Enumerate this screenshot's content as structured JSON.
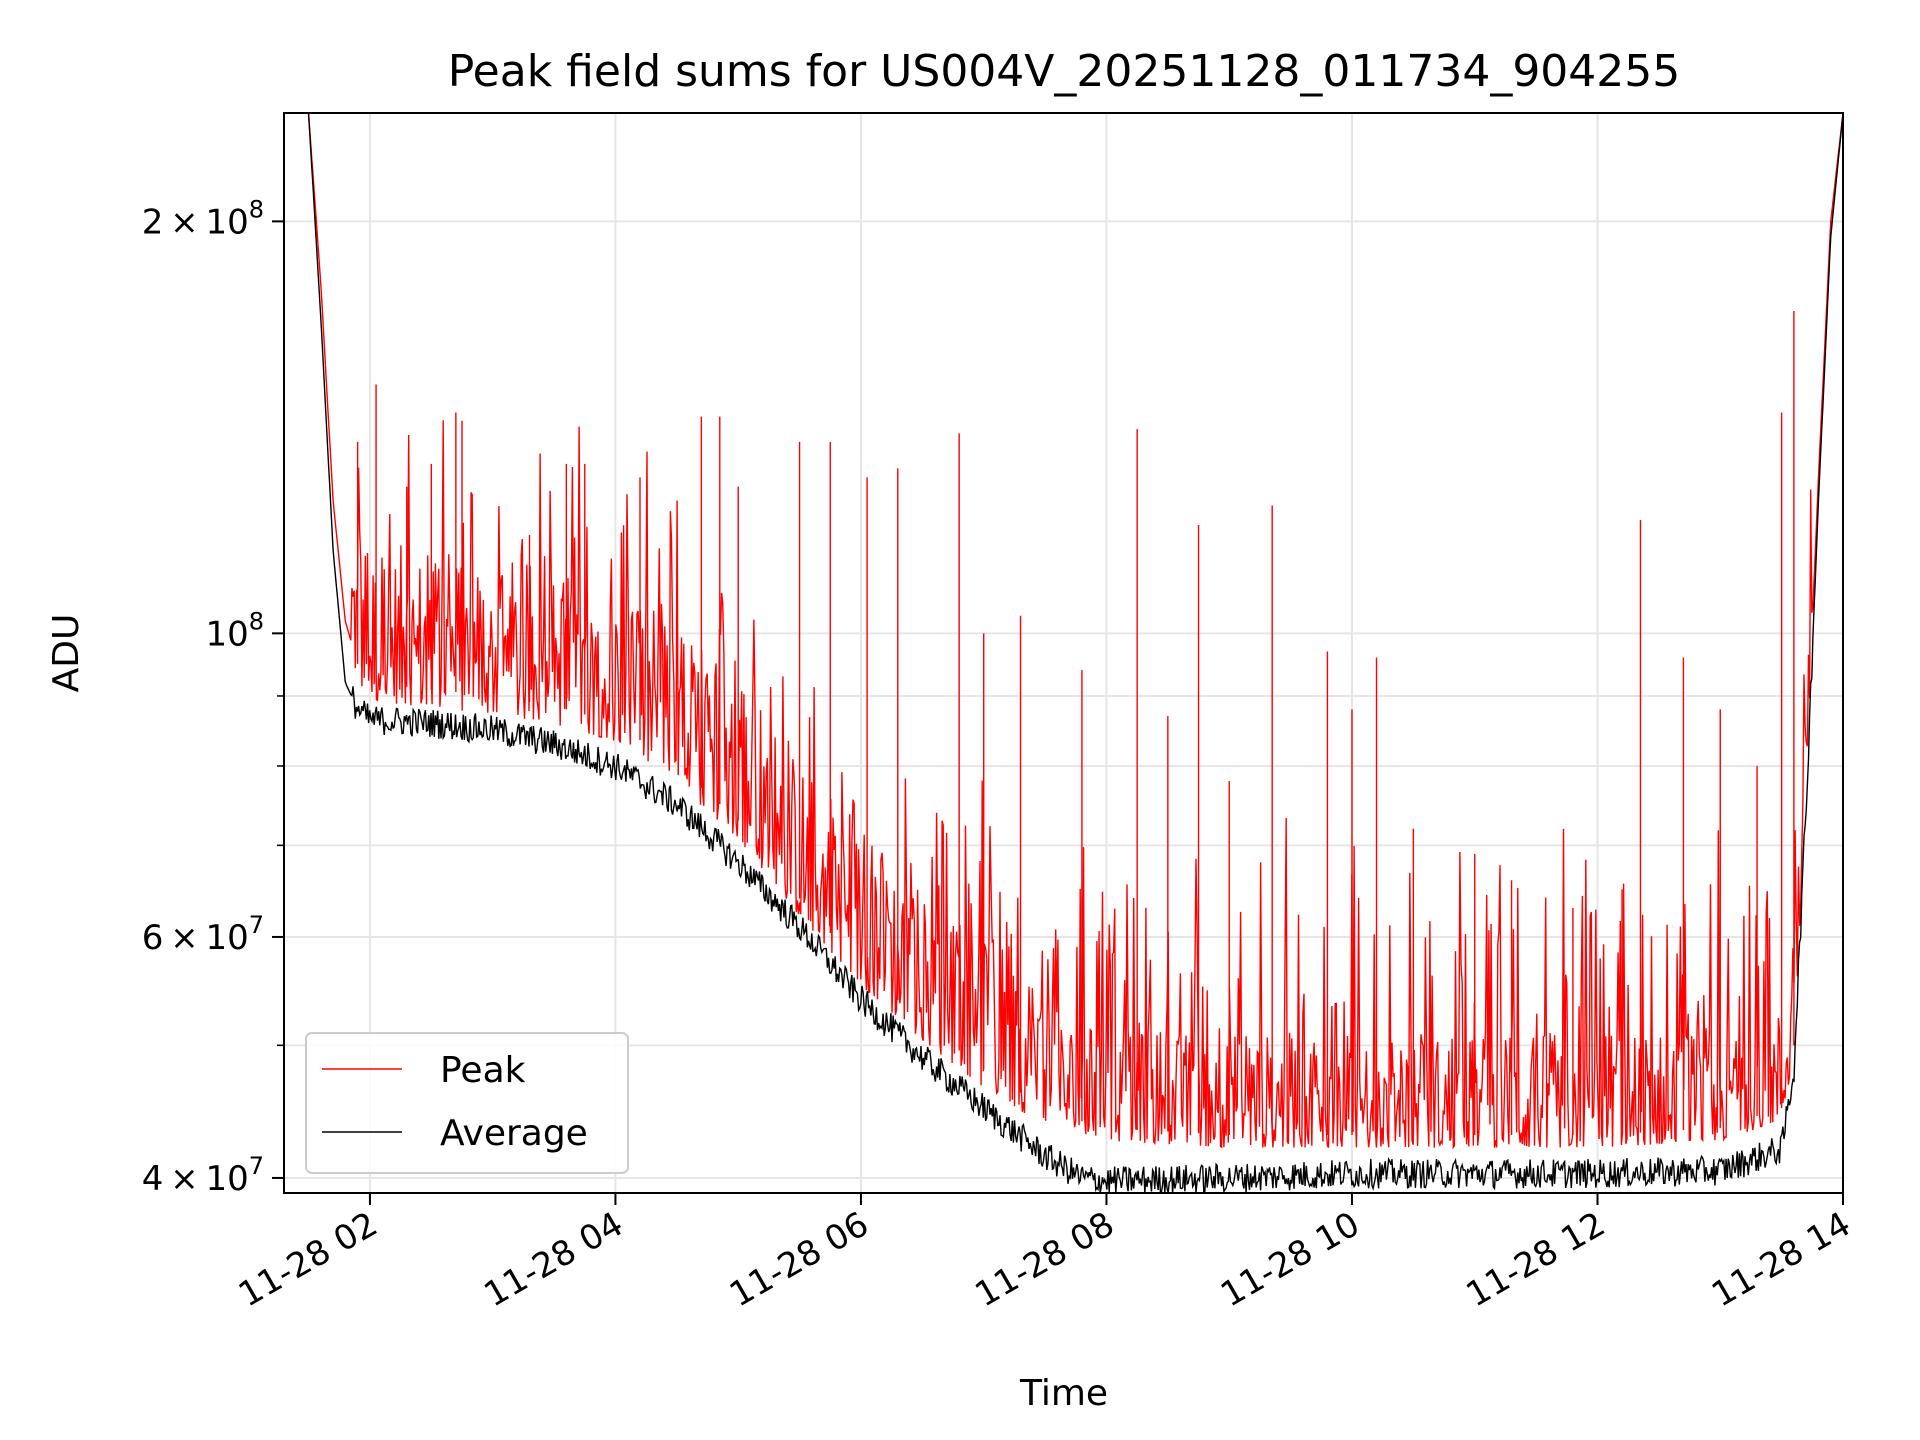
{
  "chart_data": {
    "type": "line",
    "title": "Peak field sums for US004V_20251128_011734_904255",
    "xlabel": "Time",
    "ylabel": "ADU",
    "y_scale": "log",
    "grid": true,
    "legend_position": "lower-left",
    "x_unit": "hours since 11-28 00:00",
    "xlim": [
      1.3,
      14.0
    ],
    "ylim": [
      39000000,
      240000000
    ],
    "x_ticks": [
      {
        "value": 2,
        "label": "11-28 02"
      },
      {
        "value": 4,
        "label": "11-28 04"
      },
      {
        "value": 6,
        "label": "11-28 06"
      },
      {
        "value": 8,
        "label": "11-28 08"
      },
      {
        "value": 10,
        "label": "11-28 10"
      },
      {
        "value": 12,
        "label": "11-28 12"
      },
      {
        "value": 14,
        "label": "11-28 14"
      }
    ],
    "y_major_ticks": [
      {
        "value": 40000000,
        "mantissa": "4",
        "exp": "7"
      },
      {
        "value": 60000000,
        "mantissa": "6",
        "exp": "7"
      },
      {
        "value": 100000000,
        "mantissa": "",
        "exp": "8"
      },
      {
        "value": 200000000,
        "mantissa": "2",
        "exp": "8"
      }
    ],
    "y_minor_ticks": [
      50000000,
      70000000,
      80000000,
      90000000
    ],
    "series": [
      {
        "name": "Peak",
        "color": "#ff0000",
        "baseline": {
          "x": [
            1.3,
            1.5,
            1.6,
            1.7,
            1.8,
            1.9,
            2.0,
            2.5,
            3.0,
            3.5,
            4.0,
            4.5,
            5.0,
            5.5,
            6.0,
            6.5,
            7.0,
            7.5,
            7.8,
            8.0,
            9.0,
            10.0,
            11.0,
            12.0,
            13.0,
            13.5,
            13.6,
            13.7,
            13.8,
            13.9,
            14.0
          ],
          "y": [
            240000000,
            240000000,
            180000000,
            125000000,
            102000000,
            95000000,
            92000000,
            91000000,
            90000000,
            88500000,
            86000000,
            80000000,
            73000000,
            64000000,
            57000000,
            52000000,
            48000000,
            45000000,
            44000000,
            43500000,
            43000000,
            43000000,
            43000000,
            43000000,
            43500000,
            45000000,
            50000000,
            80000000,
            130000000,
            200000000,
            240000000
          ]
        },
        "spikes": [
          {
            "x": 1.9,
            "y": 138000000
          },
          {
            "x": 2.05,
            "y": 152000000
          },
          {
            "x": 2.3,
            "y": 128000000
          },
          {
            "x": 2.5,
            "y": 133000000
          },
          {
            "x": 2.7,
            "y": 145000000
          },
          {
            "x": 2.75,
            "y": 143000000
          },
          {
            "x": 3.3,
            "y": 118000000
          },
          {
            "x": 3.6,
            "y": 133000000
          },
          {
            "x": 3.75,
            "y": 133000000
          },
          {
            "x": 4.2,
            "y": 130000000
          },
          {
            "x": 4.7,
            "y": 144000000
          },
          {
            "x": 4.85,
            "y": 144000000
          },
          {
            "x": 5.0,
            "y": 128000000
          },
          {
            "x": 5.5,
            "y": 138000000
          },
          {
            "x": 5.75,
            "y": 138000000
          },
          {
            "x": 6.05,
            "y": 130000000
          },
          {
            "x": 6.3,
            "y": 132000000
          },
          {
            "x": 6.8,
            "y": 140000000
          },
          {
            "x": 7.0,
            "y": 100000000
          },
          {
            "x": 7.3,
            "y": 103000000
          },
          {
            "x": 7.8,
            "y": 94000000
          },
          {
            "x": 8.25,
            "y": 141000000
          },
          {
            "x": 8.5,
            "y": 87000000
          },
          {
            "x": 8.75,
            "y": 120000000
          },
          {
            "x": 9.0,
            "y": 78000000
          },
          {
            "x": 9.35,
            "y": 124000000
          },
          {
            "x": 9.8,
            "y": 97000000
          },
          {
            "x": 10.0,
            "y": 88000000
          },
          {
            "x": 10.2,
            "y": 96000000
          },
          {
            "x": 10.5,
            "y": 72000000
          },
          {
            "x": 11.0,
            "y": 69000000
          },
          {
            "x": 11.3,
            "y": 66000000
          },
          {
            "x": 11.8,
            "y": 63000000
          },
          {
            "x": 12.2,
            "y": 65000000
          },
          {
            "x": 12.35,
            "y": 121000000
          },
          {
            "x": 12.7,
            "y": 96000000
          },
          {
            "x": 13.0,
            "y": 88000000
          },
          {
            "x": 13.3,
            "y": 80000000
          },
          {
            "x": 13.5,
            "y": 145000000
          },
          {
            "x": 13.6,
            "y": 172000000
          }
        ]
      },
      {
        "name": "Average",
        "color": "#000000",
        "x": [
          1.3,
          1.5,
          1.6,
          1.7,
          1.8,
          1.9,
          2.0,
          2.5,
          3.0,
          3.5,
          4.0,
          4.5,
          5.0,
          5.5,
          6.0,
          6.5,
          7.0,
          7.5,
          7.8,
          8.0,
          9.0,
          10.0,
          11.0,
          12.0,
          13.0,
          13.5,
          13.6,
          13.7,
          13.8,
          13.9,
          14.0
        ],
        "y": [
          240000000,
          240000000,
          170000000,
          115000000,
          92000000,
          88000000,
          86500000,
          86000000,
          85000000,
          83000000,
          80000000,
          75000000,
          68000000,
          61000000,
          54000000,
          49000000,
          45000000,
          41500000,
          40000000,
          39800000,
          40000000,
          40300000,
          40300000,
          40300000,
          40500000,
          42000000,
          48000000,
          75000000,
          125000000,
          195000000,
          240000000
        ]
      }
    ]
  }
}
